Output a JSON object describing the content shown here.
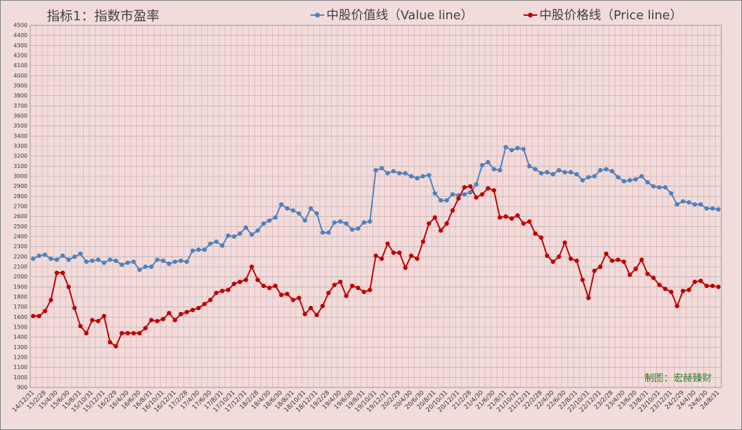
{
  "chart_data": {
    "type": "line",
    "title": "指标1：指数市盈率",
    "annotation": "制图：宏赫臻财",
    "categories": [
      "14/12/31",
      null,
      "15/2/28",
      null,
      "15/4/30",
      null,
      "15/6/30",
      null,
      "15/8/31",
      null,
      "15/10/31",
      null,
      "15/12/31",
      null,
      "16/2/29",
      null,
      "16/4/30",
      null,
      "16/6/30",
      null,
      "16/8/31",
      null,
      "16/10/31",
      null,
      "16/12/31",
      null,
      "17/2/28",
      null,
      "17/4/30",
      null,
      "17/6/30",
      null,
      "17/8/31",
      null,
      "17/10/31",
      null,
      "17/12/31",
      null,
      "18/2/28",
      null,
      "18/4/30",
      null,
      "18/6/30",
      null,
      "18/8/31",
      null,
      "18/10/31",
      null,
      "18/12/31",
      null,
      "19/2/28",
      null,
      "19/4/30",
      null,
      "19/6/30",
      null,
      "19/8/31",
      null,
      "19/10/31",
      null,
      "19/12/31",
      null,
      "20/2/29",
      null,
      "20/4/30",
      null,
      "20/6/30",
      null,
      "20/8/31",
      null,
      "20/10/31",
      null,
      "20/12/31",
      null,
      "21/2/28",
      null,
      "21/4/30",
      null,
      "21/6/30",
      null,
      "21/8/31",
      null,
      "21/10/31",
      null,
      "21/12/31",
      null,
      "22/2/28",
      null,
      "22/4/30",
      null,
      "22/6/30",
      null,
      "22/8/31",
      null,
      "22/10/31",
      null,
      "22/12/31",
      null,
      "23/2/28",
      null,
      "23/4/30",
      null,
      "23/6/30",
      null,
      "23/8/31",
      null,
      "23/10/31",
      null,
      "23/12/31",
      null,
      "24/2/29",
      null,
      "24/4/30",
      null,
      "24/6/30",
      null,
      "24/8/31"
    ],
    "series": [
      {
        "name": "中股价值线（Value line）",
        "color": "#4f81bd",
        "values": [
          2180,
          2210,
          2220,
          2180,
          2170,
          2210,
          2170,
          2200,
          2230,
          2150,
          2160,
          2170,
          2140,
          2170,
          2160,
          2120,
          2140,
          2150,
          2070,
          2100,
          2100,
          2170,
          2160,
          2130,
          2150,
          2160,
          2150,
          2260,
          2270,
          2270,
          2330,
          2350,
          2310,
          2410,
          2400,
          2430,
          2490,
          2420,
          2460,
          2530,
          2560,
          2590,
          2720,
          2680,
          2660,
          2630,
          2560,
          2680,
          2630,
          2440,
          2440,
          2540,
          2550,
          2530,
          2470,
          2480,
          2540,
          2550,
          3060,
          3080,
          3030,
          3050,
          3030,
          3030,
          3000,
          2980,
          3000,
          3010,
          2830,
          2760,
          2760,
          2820,
          2810,
          2820,
          2840,
          2920,
          3110,
          3140,
          3070,
          3060,
          3290,
          3260,
          3280,
          3270,
          3100,
          3070,
          3030,
          3040,
          3020,
          3060,
          3040,
          3040,
          3020,
          2960,
          2990,
          3000,
          3060,
          3070,
          3050,
          2990,
          2950,
          2960,
          2970,
          3000,
          2940,
          2900,
          2890,
          2890,
          2830,
          2720,
          2750,
          2740,
          2720,
          2720,
          2680,
          2680,
          2670
        ]
      },
      {
        "name": "中股价格线（Price line）",
        "color": "#c00000",
        "values": [
          1610,
          1610,
          1660,
          1770,
          2040,
          2040,
          1900,
          1690,
          1510,
          1440,
          1570,
          1560,
          1610,
          1350,
          1310,
          1440,
          1440,
          1440,
          1440,
          1490,
          1570,
          1560,
          1580,
          1640,
          1570,
          1630,
          1650,
          1670,
          1690,
          1730,
          1770,
          1840,
          1860,
          1870,
          1930,
          1950,
          1970,
          2100,
          1970,
          1910,
          1890,
          1910,
          1820,
          1830,
          1770,
          1790,
          1630,
          1690,
          1620,
          1710,
          1840,
          1920,
          1950,
          1810,
          1910,
          1890,
          1850,
          1870,
          2210,
          2180,
          2330,
          2240,
          2240,
          2090,
          2210,
          2180,
          2350,
          2530,
          2590,
          2460,
          2530,
          2660,
          2780,
          2890,
          2900,
          2790,
          2820,
          2880,
          2860,
          2590,
          2600,
          2580,
          2610,
          2530,
          2550,
          2430,
          2390,
          2210,
          2150,
          2200,
          2340,
          2180,
          2160,
          1970,
          1790,
          2060,
          2100,
          2230,
          2160,
          2170,
          2150,
          2020,
          2080,
          2170,
          2030,
          1990,
          1920,
          1880,
          1850,
          1710,
          1860,
          1870,
          1950,
          1960,
          1910,
          1910,
          1900
        ]
      }
    ],
    "ylim": [
      900,
      4500
    ],
    "yticks": [
      900,
      1000,
      1100,
      1200,
      1300,
      1400,
      1500,
      1600,
      1700,
      1800,
      1900,
      2000,
      2100,
      2200,
      2300,
      2400,
      2500,
      2600,
      2700,
      2800,
      2900,
      3000,
      3100,
      3200,
      3300,
      3400,
      3500,
      3600,
      3700,
      3800,
      3900,
      4000,
      4100,
      4200,
      4300,
      4400,
      4500
    ],
    "grid": true
  }
}
